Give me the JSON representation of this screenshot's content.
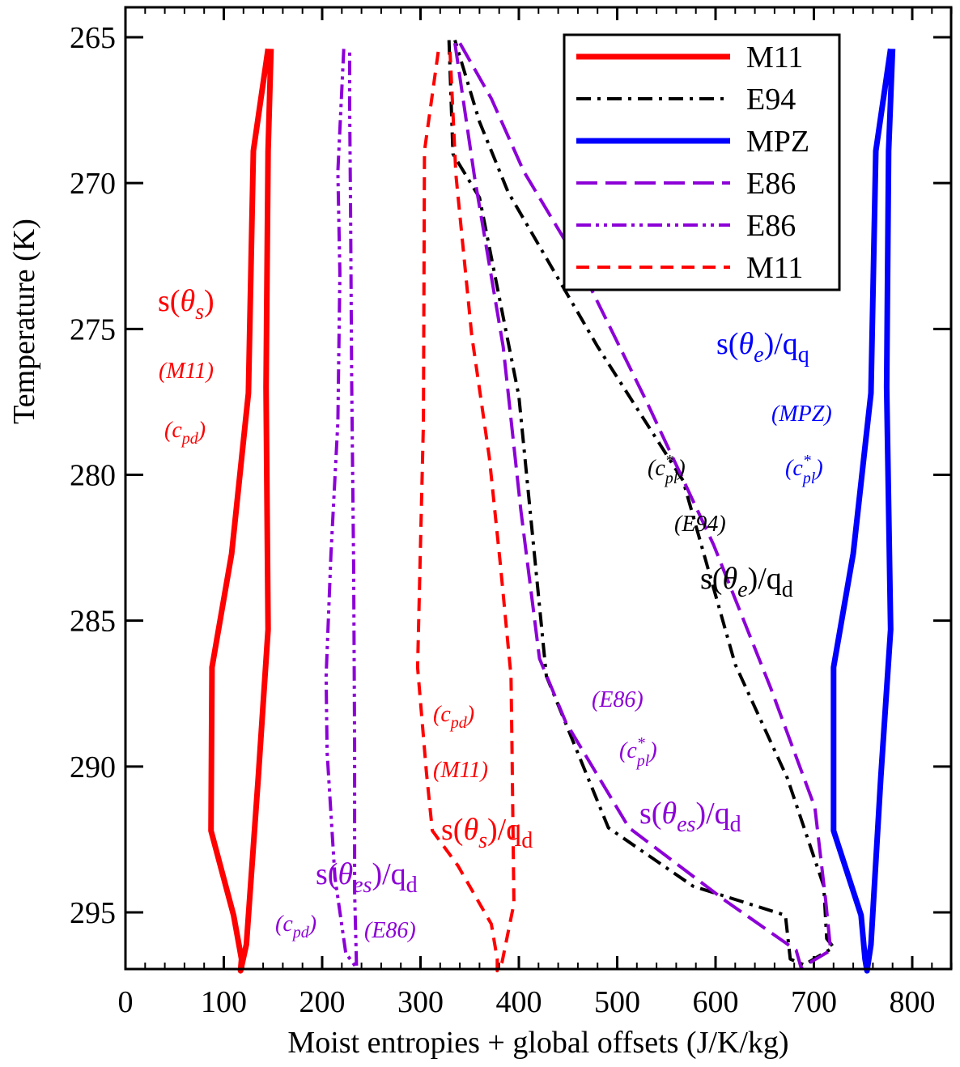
{
  "chart_data": {
    "type": "line",
    "title": "",
    "xlabel": "Moist entropies + global offsets (J/K/kg)",
    "ylabel": "Temperature (K)",
    "xlim": [
      0,
      850
    ],
    "ylim": [
      297,
      264
    ],
    "x_ticks": [
      0,
      100,
      200,
      300,
      400,
      500,
      600,
      700,
      800
    ],
    "y_ticks": [
      265,
      270,
      275,
      280,
      285,
      290,
      295
    ],
    "series": [
      {
        "name": "M11",
        "color": "#ff0000",
        "dash": "solid",
        "width": 7,
        "points": [
          [
            145,
            265.4
          ],
          [
            130,
            268.9
          ],
          [
            125,
            277.2
          ],
          [
            108,
            282.7
          ],
          [
            88,
            286.6
          ],
          [
            87,
            292.2
          ],
          [
            110,
            295.1
          ],
          [
            118,
            296.6
          ],
          [
            117,
            297.0
          ],
          [
            123,
            296.1
          ],
          [
            135,
            290.4
          ],
          [
            145,
            285.3
          ],
          [
            143,
            277.0
          ],
          [
            145,
            268.9
          ],
          [
            148,
            265.4
          ]
        ]
      },
      {
        "name": "E94",
        "color": "#000000",
        "dash": "dashdot",
        "width": 4,
        "points": [
          [
            329,
            265.1
          ],
          [
            333,
            269.0
          ],
          [
            360,
            270.5
          ],
          [
            400,
            277.3
          ],
          [
            428,
            286.9
          ],
          [
            491,
            292.1
          ],
          [
            577,
            294.1
          ],
          [
            671,
            295.1
          ],
          [
            676,
            296.6
          ],
          [
            690,
            296.8
          ],
          [
            720,
            296.2
          ],
          [
            713,
            295.9
          ],
          [
            710,
            294.1
          ],
          [
            673,
            290.4
          ],
          [
            620,
            286.5
          ],
          [
            567,
            280.2
          ],
          [
            480,
            275.6
          ],
          [
            389,
            270.3
          ],
          [
            360,
            267.9
          ],
          [
            335,
            265.1
          ]
        ]
      },
      {
        "name": "MPZ",
        "color": "#0000ff",
        "dash": "solid",
        "width": 7,
        "points": [
          [
            778,
            265.4
          ],
          [
            763,
            268.9
          ],
          [
            758,
            277.2
          ],
          [
            740,
            282.7
          ],
          [
            720,
            286.6
          ],
          [
            720,
            292.2
          ],
          [
            748,
            295.1
          ],
          [
            752,
            296.6
          ],
          [
            754,
            297.0
          ],
          [
            758,
            296.1
          ],
          [
            768,
            290.4
          ],
          [
            778,
            285.3
          ],
          [
            774,
            277.0
          ],
          [
            776,
            268.9
          ],
          [
            780,
            265.4
          ]
        ]
      },
      {
        "name": "E86",
        "color": "#8c00d7",
        "dash": "longdash",
        "width": 4,
        "points": [
          [
            335,
            265.2
          ],
          [
            355,
            269.8
          ],
          [
            384,
            275.6
          ],
          [
            402,
            281.2
          ],
          [
            421,
            286.3
          ],
          [
            448,
            288.5
          ],
          [
            512,
            292.1
          ],
          [
            610,
            294.6
          ],
          [
            682,
            296.3
          ],
          [
            687,
            296.9
          ],
          [
            717,
            296.3
          ],
          [
            712,
            294.6
          ],
          [
            701,
            291.4
          ],
          [
            656,
            287.3
          ],
          [
            598,
            282.4
          ],
          [
            530,
            277.5
          ],
          [
            460,
            272.7
          ],
          [
            405,
            269.6
          ],
          [
            372,
            267.1
          ],
          [
            340,
            265.2
          ]
        ]
      },
      {
        "name": "E86",
        "color": "#8c00d7",
        "dash": "dashdotdot",
        "width": 4,
        "points": [
          [
            222,
            265.4
          ],
          [
            216,
            269.6
          ],
          [
            218,
            273.1
          ],
          [
            216,
            278.2
          ],
          [
            209,
            282.7
          ],
          [
            204,
            286.9
          ],
          [
            205,
            289.5
          ],
          [
            213,
            293.8
          ],
          [
            224,
            296.4
          ],
          [
            235,
            296.9
          ],
          [
            233,
            294.3
          ],
          [
            233,
            289.3
          ],
          [
            232,
            283.1
          ],
          [
            230,
            276.9
          ],
          [
            229,
            271.3
          ],
          [
            228,
            267.4
          ],
          [
            228,
            265.4
          ]
        ]
      },
      {
        "name": "M11",
        "color": "#ff0000",
        "dash": "dashed",
        "width": 4,
        "points": [
          [
            318,
            265.5
          ],
          [
            304,
            268.9
          ],
          [
            303,
            278.2
          ],
          [
            297,
            286.6
          ],
          [
            306,
            290.2
          ],
          [
            312,
            292.2
          ],
          [
            338,
            293.4
          ],
          [
            372,
            295.4
          ],
          [
            378,
            296.6
          ],
          [
            378,
            297.0
          ],
          [
            383,
            296.7
          ],
          [
            395,
            294.7
          ],
          [
            393,
            289.3
          ],
          [
            392,
            286.9
          ],
          [
            381,
            283.0
          ],
          [
            370,
            279.4
          ],
          [
            352,
            275.2
          ],
          [
            336,
            269.7
          ],
          [
            330,
            265.5
          ]
        ]
      }
    ],
    "legend": {
      "position": "top-right",
      "entries": [
        {
          "label": "M11",
          "color": "#ff0000",
          "dash": "solid"
        },
        {
          "label": "E94",
          "color": "#000000",
          "dash": "dashdot"
        },
        {
          "label": "MPZ",
          "color": "#0000ff",
          "dash": "solid"
        },
        {
          "label": "E86",
          "color": "#8c00d7",
          "dash": "longdash"
        },
        {
          "label": "E86",
          "color": "#8c00d7",
          "dash": "dashdotdot"
        },
        {
          "label": "M11",
          "color": "#ff0000",
          "dash": "dashed"
        }
      ]
    },
    "annotations": {
      "s_theta_s": {
        "main": "s(",
        "sym": "θ",
        "sub": "s",
        "close": ")",
        "color": "#ff0000"
      },
      "m11_left": {
        "text": "(M11)",
        "color": "#ff0000"
      },
      "cpd_left": {
        "pre": "(c",
        "sub": "pd",
        "post": ")",
        "color": "#ff0000"
      },
      "s_theta_e_qq": {
        "main": "s(",
        "sym": "θ",
        "sub": "e",
        "mid": ")/q",
        "sub2": "q",
        "color": "#0000ff"
      },
      "mpz_right": {
        "text": "(MPZ)",
        "color": "#0000ff"
      },
      "cpl_blue": {
        "pre": "(c",
        "sup": "*",
        "sub": "pl",
        "post": ")",
        "color": "#0000ff"
      },
      "cpl_black": {
        "pre": "(c",
        "sup": "*",
        "sub": "pl",
        "post": ")",
        "color": "#000000"
      },
      "e94_label": {
        "text": "(E94)",
        "color": "#000000"
      },
      "s_theta_e_qd": {
        "main": "s(",
        "sym": "θ",
        "sub": "e",
        "mid": ")/q",
        "sub2": "d",
        "color": "#000000"
      },
      "cpd_mid": {
        "pre": "(c",
        "sub": "pd",
        "post": ")",
        "color": "#ff0000"
      },
      "m11_mid": {
        "text": "(M11)",
        "color": "#ff0000"
      },
      "s_theta_s_qd": {
        "main": "s(",
        "sym": "θ",
        "sub": "s",
        "mid": ")/q",
        "sub2": "d",
        "color": "#ff0000"
      },
      "e86_right": {
        "text": "(E86)",
        "color": "#8c00d7"
      },
      "cpl_purple": {
        "pre": "(c",
        "sup": "*",
        "sub": "pl",
        "post": ")",
        "color": "#8c00d7"
      },
      "s_theta_es_qd_right": {
        "main": "s(",
        "sym": "θ",
        "sub": "es",
        "mid": ")/q",
        "sub2": "d",
        "color": "#8c00d7"
      },
      "s_theta_es_qd_left": {
        "main": "s(",
        "sym": "θ",
        "sub": "es",
        "mid": ")/q",
        "sub2": "d",
        "color": "#8c00d7"
      },
      "cpd_purple": {
        "pre": "(c",
        "sub": "pd",
        "post": ")",
        "color": "#8c00d7"
      },
      "e86_left": {
        "text": "(E86)",
        "color": "#8c00d7"
      }
    }
  }
}
